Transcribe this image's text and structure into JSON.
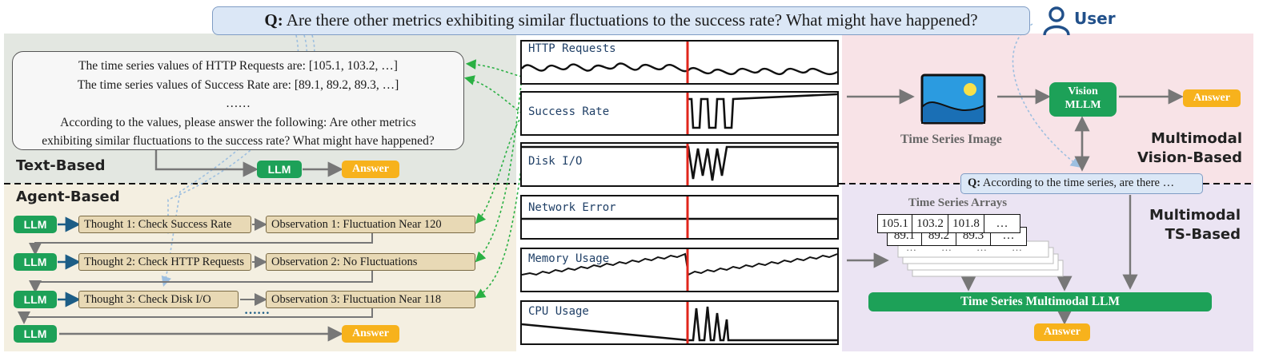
{
  "question": {
    "prefix": "Q:",
    "text": " Are there other metrics exhibiting similar fluctuations to the success rate? What might have happened?"
  },
  "user": {
    "label": "User",
    "icon": "user-icon"
  },
  "colors": {
    "text_based_bg": "#e3e7e1",
    "agent_based_bg": "#f4efe1",
    "vision_bg": "#f8e3e7",
    "ts_bg": "#ebe4f3",
    "llm_green": "#1da158",
    "answer_orange": "#f7b21c",
    "thought_fill": "#e8d9b5",
    "red_line": "#e1261c"
  },
  "text_based": {
    "title": "Text-Based",
    "prompt_lines": [
      "The time series values of HTTP Requests are: [105.1, 103.2, …]",
      "The time series values of Success Rate are: [89.1, 89.2, 89.3, …]",
      "……",
      "According to the values, please answer the following: Are other metrics",
      "exhibiting similar fluctuations to the success rate? What might have happened?"
    ],
    "llm": "LLM",
    "answer": "Answer"
  },
  "agent_based": {
    "title": "Agent-Based",
    "llm": "LLM",
    "answer": "Answer",
    "ellipsis": "……",
    "steps": [
      {
        "thought": "Thought 1: Check Success Rate",
        "observation": "Observation 1: Fluctuation Near 120"
      },
      {
        "thought": "Thought 2: Check HTTP Requests",
        "observation": "Observation 2: No Fluctuations"
      },
      {
        "thought": "Thought 3: Check Disk I/O",
        "observation": "Observation 3: Fluctuation Near 118"
      }
    ]
  },
  "charts": [
    "HTTP Requests",
    "Success Rate",
    "Disk I/O",
    "Network Error",
    "Memory Usage",
    "CPU Usage"
  ],
  "vision_based": {
    "image_label": "Time Series Image",
    "mllm": [
      "Vision",
      "MLLM"
    ],
    "answer": "Answer",
    "title": [
      "Multimodal",
      "Vision-Based"
    ]
  },
  "ts_based": {
    "question_prefix": "Q:",
    "question_text": " According to the time series, are there …",
    "arrays_label": "Time Series Arrays",
    "row1": [
      "105.1",
      "103.2",
      "101.8",
      "…"
    ],
    "row2": [
      "89.1",
      "89.2",
      "89.3",
      "…"
    ],
    "row_dots": "…",
    "llm": "Time Series Multimodal LLM",
    "answer": "Answer",
    "title": [
      "Multimodal",
      "TS-Based"
    ]
  }
}
